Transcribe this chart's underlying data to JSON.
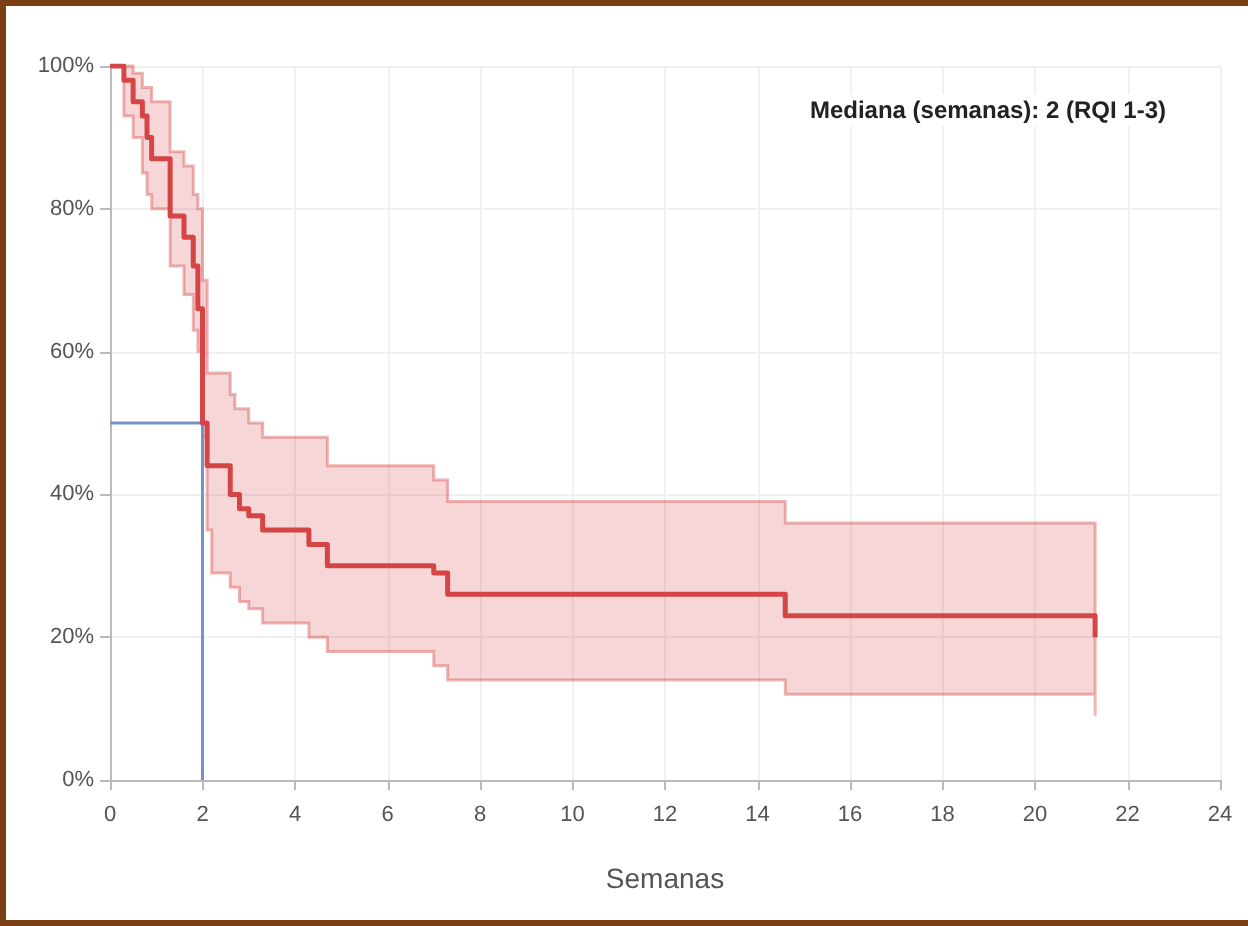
{
  "chart_data": {
    "type": "step",
    "xlabel": "Semanas",
    "annotations": [
      "Mediana (semanas): 2 (RQI 1-3)"
    ],
    "xlim": [
      0,
      24
    ],
    "xticks": [
      0,
      2,
      4,
      6,
      8,
      10,
      12,
      14,
      16,
      18,
      20,
      22,
      24
    ],
    "ylim": [
      0,
      100
    ],
    "yticks": [
      {
        "value": 0,
        "label": "0%"
      },
      {
        "value": 20,
        "label": "20%"
      },
      {
        "value": 40,
        "label": "40%"
      },
      {
        "value": 60,
        "label": "60%"
      },
      {
        "value": 80,
        "label": "80%"
      },
      {
        "value": 100,
        "label": "100%"
      }
    ],
    "grid": true,
    "marker": "none",
    "series": [
      {
        "color": "#d64545",
        "x": [
          0,
          0.3,
          0.5,
          0.7,
          0.8,
          0.9,
          1.3,
          1.6,
          1.8,
          1.9,
          2.0,
          2.1,
          2.2,
          2.6,
          2.7,
          2.8,
          3.0,
          3.3,
          4.3,
          4.7,
          7.0,
          7.3,
          14.6,
          21.3
        ],
        "values": [
          100,
          98,
          95,
          93,
          90,
          87,
          79,
          76,
          72,
          66,
          50,
          44,
          44,
          40,
          40,
          38,
          37,
          35,
          33,
          30,
          29,
          26,
          23,
          20
        ],
        "upper": [
          100,
          100,
          99,
          97,
          97,
          95,
          88,
          86,
          82,
          80,
          70,
          57,
          57,
          54,
          52,
          52,
          50,
          48,
          48,
          44,
          42,
          39,
          36,
          33
        ],
        "lower": [
          100,
          93,
          90,
          85,
          82,
          80,
          72,
          68,
          63,
          60,
          48,
          35,
          29,
          27,
          27,
          25,
          24,
          22,
          20,
          18,
          16,
          14,
          12,
          9
        ]
      },
      {
        "type": "line",
        "color": "#7393c9",
        "x": [
          0,
          2,
          2
        ],
        "values": [
          50,
          50,
          0
        ]
      }
    ]
  }
}
